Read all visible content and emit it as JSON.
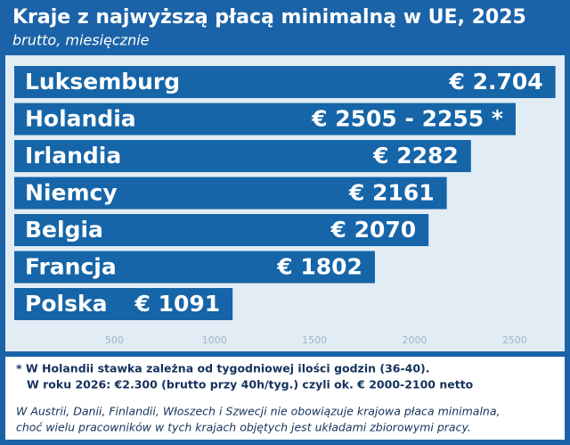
{
  "chart_data": {
    "type": "bar",
    "orientation": "horizontal",
    "title": "Kraje z najwyższą płacą minimalną w UE, 2025",
    "subtitle": "brutto, miesięcznie",
    "categories": [
      "Luksemburg",
      "Holandia",
      "Irlandia",
      "Niemcy",
      "Belgia",
      "Francja",
      "Polska"
    ],
    "values": [
      2704,
      2505,
      2282,
      2161,
      2070,
      1802,
      1091
    ],
    "value_labels": [
      "€ 2.704",
      "€ 2505 - 2255 *",
      "€ 2282",
      "€ 2161",
      "€ 2070",
      "€ 1802",
      "€ 1091"
    ],
    "color": "#1565a8",
    "xlim": [
      0,
      2750
    ],
    "xticks": [
      500,
      1000,
      1500,
      2000,
      2500
    ],
    "grid": false,
    "annotations": [
      "* W Holandii stawka zależna od tygodniowej ilości godzin (36-40).",
      "W roku 2026: €2.300 (brutto przy 40h/tyg.) czyli ok. € 2000-2100 netto",
      "W Austrii, Danii, Finlandii, Włoszech i Szwecji nie obowiązuje krajowa płaca minimalna,",
      "choć wielu pracowników w tych krajach objętych jest układami zbiorowymi pracy."
    ]
  }
}
